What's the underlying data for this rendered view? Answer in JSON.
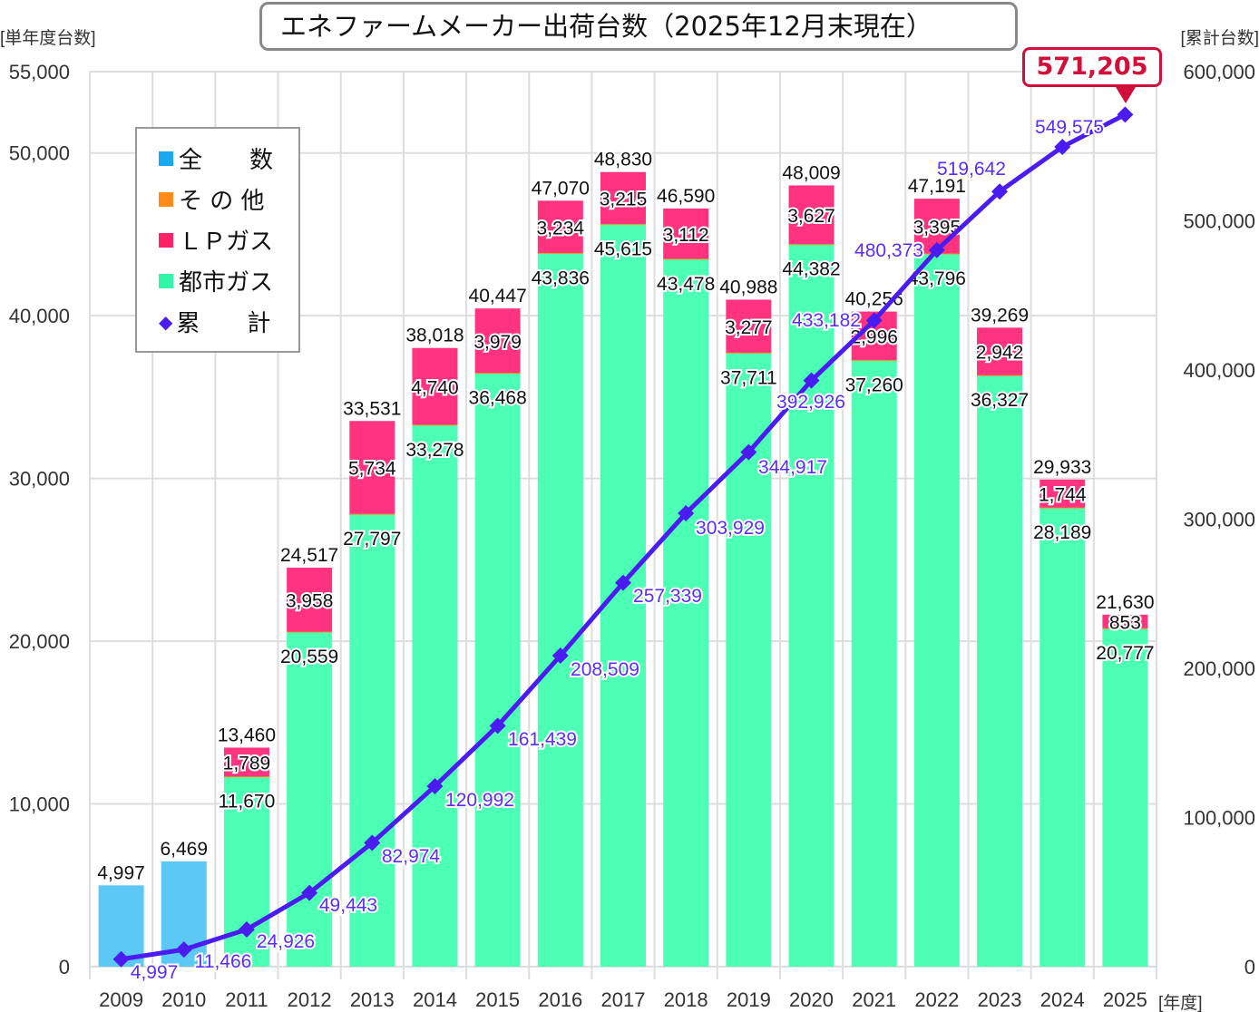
{
  "chart_data": {
    "type": "bar",
    "title": "エネファームメーカー出荷台数（2025年12月末現在）",
    "ylabel": "[単年度台数]",
    "y2label": "[累計台数]",
    "xlabel": "[年度]",
    "ylim": [
      0,
      55000
    ],
    "y2lim": [
      0,
      600000
    ],
    "yticks": [
      "0",
      "10,000",
      "20,000",
      "30,000",
      "40,000",
      "50,000",
      "55,000"
    ],
    "ytick_values": [
      0,
      10000,
      20000,
      30000,
      40000,
      50000,
      55000
    ],
    "y2ticks": [
      "0",
      "100,000",
      "200,000",
      "300,000",
      "400,000",
      "500,000",
      "600,000"
    ],
    "y2tick_values": [
      0,
      100000,
      200000,
      300000,
      400000,
      500000,
      600000
    ],
    "categories": [
      "2009",
      "2010",
      "2011",
      "2012",
      "2013",
      "2014",
      "2015",
      "2016",
      "2017",
      "2018",
      "2019",
      "2020",
      "2021",
      "2022",
      "2023",
      "2024",
      "2025"
    ],
    "series": [
      {
        "name": "全　　数",
        "color": "#5bc8f5",
        "values": [
          4997,
          6469,
          null,
          null,
          null,
          null,
          null,
          null,
          null,
          null,
          null,
          null,
          null,
          null,
          null,
          null,
          null
        ]
      },
      {
        "name": "そ の 他",
        "color": "#ff8c1a",
        "values": [
          null,
          null,
          1,
          0,
          0,
          0,
          0,
          0,
          0,
          0,
          0,
          0,
          0,
          0,
          0,
          0,
          0
        ]
      },
      {
        "name": "ＬＰガス",
        "color": "#ff3380",
        "values": [
          null,
          null,
          1789,
          3958,
          5734,
          4740,
          3979,
          3234,
          3215,
          3112,
          3277,
          3627,
          2996,
          3395,
          2942,
          1744,
          853
        ]
      },
      {
        "name": "都市ガス",
        "color": "#4dffb4",
        "values": [
          null,
          null,
          11670,
          20559,
          27797,
          33278,
          36468,
          43836,
          45615,
          43478,
          37711,
          44382,
          37260,
          43796,
          36327,
          28189,
          20777
        ]
      },
      {
        "name": "累　　計",
        "color": "#4a1cf0",
        "axis": "right",
        "values": [
          4997,
          11466,
          24926,
          49443,
          82974,
          120992,
          161439,
          208509,
          257339,
          303929,
          344917,
          392926,
          433182,
          480373,
          519642,
          549575,
          571205
        ]
      }
    ],
    "totals": [
      4997,
      6469,
      13460,
      24517,
      33531,
      38018,
      40447,
      47070,
      48830,
      46590,
      40988,
      48009,
      40256,
      47191,
      39269,
      29933,
      21630
    ],
    "labels": {
      "totals": [
        "4,997",
        "6,469",
        "13,460",
        "24,517",
        "33,531",
        "38,018",
        "40,447",
        "47,070",
        "48,830",
        "46,590",
        "40,988",
        "48,009",
        "40,256",
        "47,191",
        "39,269",
        "29,933",
        "21,630"
      ],
      "lp": [
        null,
        null,
        "1,789",
        "3,958",
        "5,734",
        "4,740",
        "3,979",
        "3,234",
        "3,215",
        "3,112",
        "3,277",
        "3,627",
        "2,996",
        "3,395",
        "2,942",
        "1,744",
        "853"
      ],
      "city": [
        null,
        null,
        "11,670",
        "20,559",
        "27,797",
        "33,278",
        "36,468",
        "43,836",
        "45,615",
        "43,478",
        "37,711",
        "44,382",
        "37,260",
        "43,796",
        "36,327",
        "28,189",
        "20,777"
      ],
      "cumulative": [
        "4,997",
        "11,466",
        "24,926",
        "49,443",
        "82,974",
        "120,992",
        "161,439",
        "208,509",
        "257,339",
        "303,929",
        "344,917",
        "392,926",
        "433,182",
        "480,373",
        "519,642",
        "549,575"
      ]
    },
    "final_callout": "571,205",
    "legend_position": "top-left",
    "grid": true
  }
}
